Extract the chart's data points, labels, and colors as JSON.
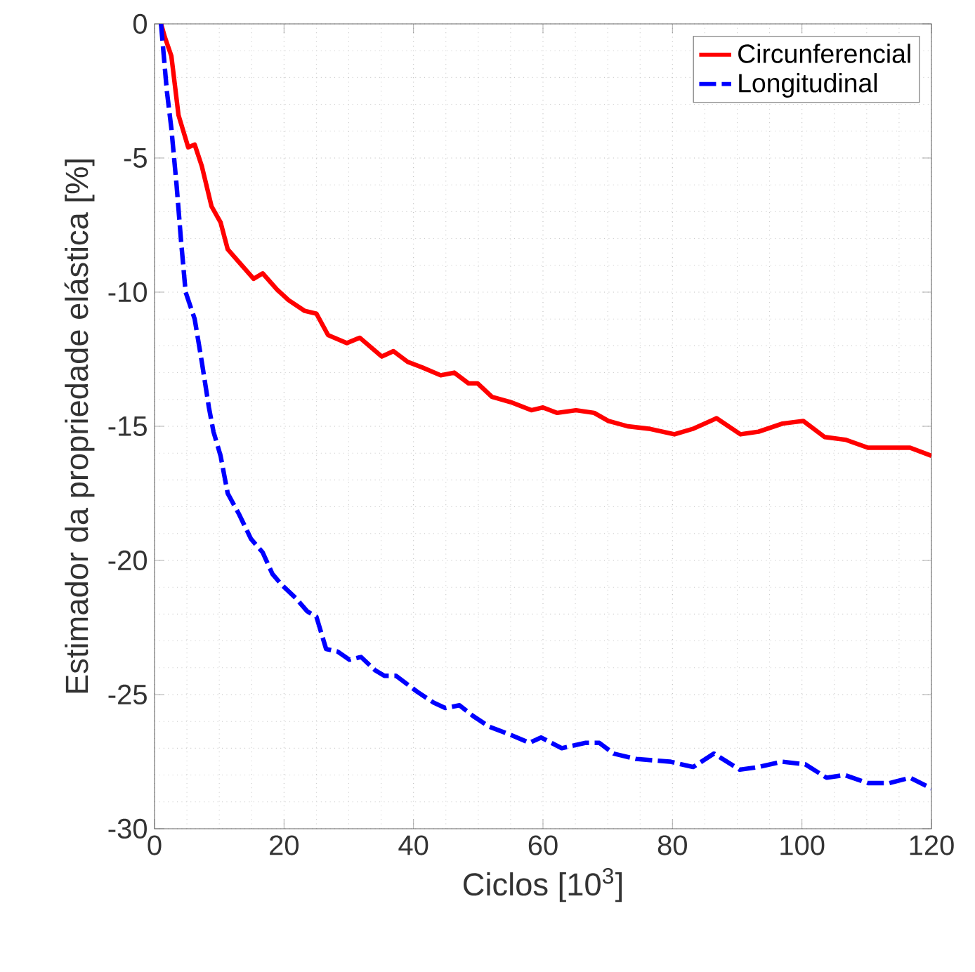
{
  "chart_data": {
    "type": "line",
    "xlabel": "Ciclos [10$^{3}$]",
    "ylabel": "Estimador da propriedade elástica [%]",
    "xlim": [
      0,
      120
    ],
    "ylim": [
      -30,
      0
    ],
    "xticks": [
      0,
      20,
      40,
      60,
      80,
      100,
      120
    ],
    "yticks": [
      -30,
      -25,
      -20,
      -15,
      -10,
      -5,
      0
    ],
    "grid": true,
    "legend": "top right",
    "marker": "none",
    "series": [
      {
        "name": "Circunferencial",
        "color": "#ff0000",
        "line_style": "solid",
        "x": [
          1,
          1.6,
          2.6,
          3.7,
          5.2,
          6.2,
          7.3,
          8.8,
          10.2,
          11.3,
          13.1,
          15.3,
          16.7,
          18.9,
          20.7,
          23.2,
          25,
          26.8,
          29.7,
          31.7,
          35.1,
          36.9,
          39.1,
          41.3,
          44.2,
          46.3,
          48.5,
          49.9,
          52.1,
          55,
          58.2,
          60,
          62.2,
          65.1,
          67.9,
          70.1,
          73.1,
          76.6,
          80.3,
          83.1,
          86.8,
          90.5,
          93.3,
          97,
          100.2,
          103.5,
          106.7,
          110.2,
          116.7,
          120
        ],
        "values": [
          0,
          -0.5,
          -1.2,
          -3.4,
          -4.6,
          -4.5,
          -5.3,
          -6.8,
          -7.4,
          -8.4,
          -8.9,
          -9.5,
          -9.3,
          -9.9,
          -10.3,
          -10.7,
          -10.8,
          -11.6,
          -11.9,
          -11.7,
          -12.4,
          -12.2,
          -12.6,
          -12.8,
          -13.1,
          -13.0,
          -13.4,
          -13.4,
          -13.9,
          -14.1,
          -14.4,
          -14.3,
          -14.5,
          -14.4,
          -14.5,
          -14.8,
          -15.0,
          -15.1,
          -15.3,
          -15.1,
          -14.7,
          -15.3,
          -15.2,
          -14.9,
          -14.8,
          -15.4,
          -15.5,
          -15.8,
          -15.8,
          -16.1
        ]
      },
      {
        "name": "Longitudinal",
        "color": "#0000ff",
        "line_style": "dashed",
        "x": [
          1,
          1.9,
          2.6,
          3.4,
          4.1,
          4.8,
          6.2,
          7.3,
          8.4,
          9.1,
          10.2,
          11.3,
          13.1,
          14.9,
          16.7,
          18.2,
          19.6,
          21.8,
          23.6,
          25,
          26.5,
          28.3,
          30.1,
          31.9,
          34.1,
          35.5,
          37.3,
          40.6,
          43.1,
          44.9,
          47.1,
          49.2,
          51.7,
          55,
          57.9,
          59.7,
          62.9,
          66.6,
          68.7,
          70.9,
          74.4,
          79.6,
          83.2,
          86.4,
          90.4,
          93.3,
          96.9,
          100.5,
          103.8,
          106.6,
          110.2,
          113.5,
          116.7,
          120
        ],
        "values": [
          0,
          -2.5,
          -3.9,
          -6.0,
          -8.1,
          -10.0,
          -11.0,
          -12.6,
          -14.3,
          -15.2,
          -16.1,
          -17.5,
          -18.3,
          -19.2,
          -19.7,
          -20.5,
          -20.9,
          -21.4,
          -21.9,
          -22.1,
          -23.3,
          -23.4,
          -23.7,
          -23.6,
          -24.1,
          -24.3,
          -24.3,
          -24.9,
          -25.3,
          -25.5,
          -25.4,
          -25.8,
          -26.2,
          -26.5,
          -26.8,
          -26.6,
          -27.0,
          -26.8,
          -26.8,
          -27.2,
          -27.4,
          -27.5,
          -27.7,
          -27.2,
          -27.8,
          -27.7,
          -27.5,
          -27.6,
          -28.1,
          -28.0,
          -28.3,
          -28.3,
          -28.1,
          -28.5
        ]
      }
    ]
  }
}
